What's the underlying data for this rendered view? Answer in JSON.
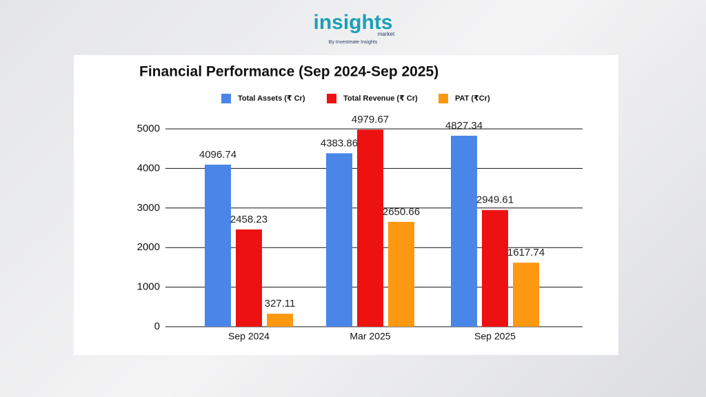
{
  "brand": {
    "name": "insights",
    "sub": "market",
    "tagline": "By Investmate Insights"
  },
  "chart_data": {
    "type": "bar",
    "title": "Financial Performance (Sep 2024-Sep 2025)",
    "categories": [
      "Sep 2024",
      "Mar 2025",
      "Sep 2025"
    ],
    "series": [
      {
        "name": "Total Assets (₹ Cr)",
        "color": "#4a86e8",
        "values": [
          4096.74,
          4383.86,
          4827.34
        ]
      },
      {
        "name": "Total Revenue (₹ Cr)",
        "color": "#ee1111",
        "values": [
          2458.23,
          4979.67,
          2949.61
        ]
      },
      {
        "name": "PAT (₹Cr)",
        "color": "#ff9811",
        "values": [
          327.11,
          2650.66,
          1617.74
        ]
      }
    ],
    "ylim": [
      0,
      5000
    ],
    "yticks": [
      0,
      1000,
      2000,
      3000,
      4000,
      5000
    ],
    "grid": true,
    "legend": "top"
  }
}
